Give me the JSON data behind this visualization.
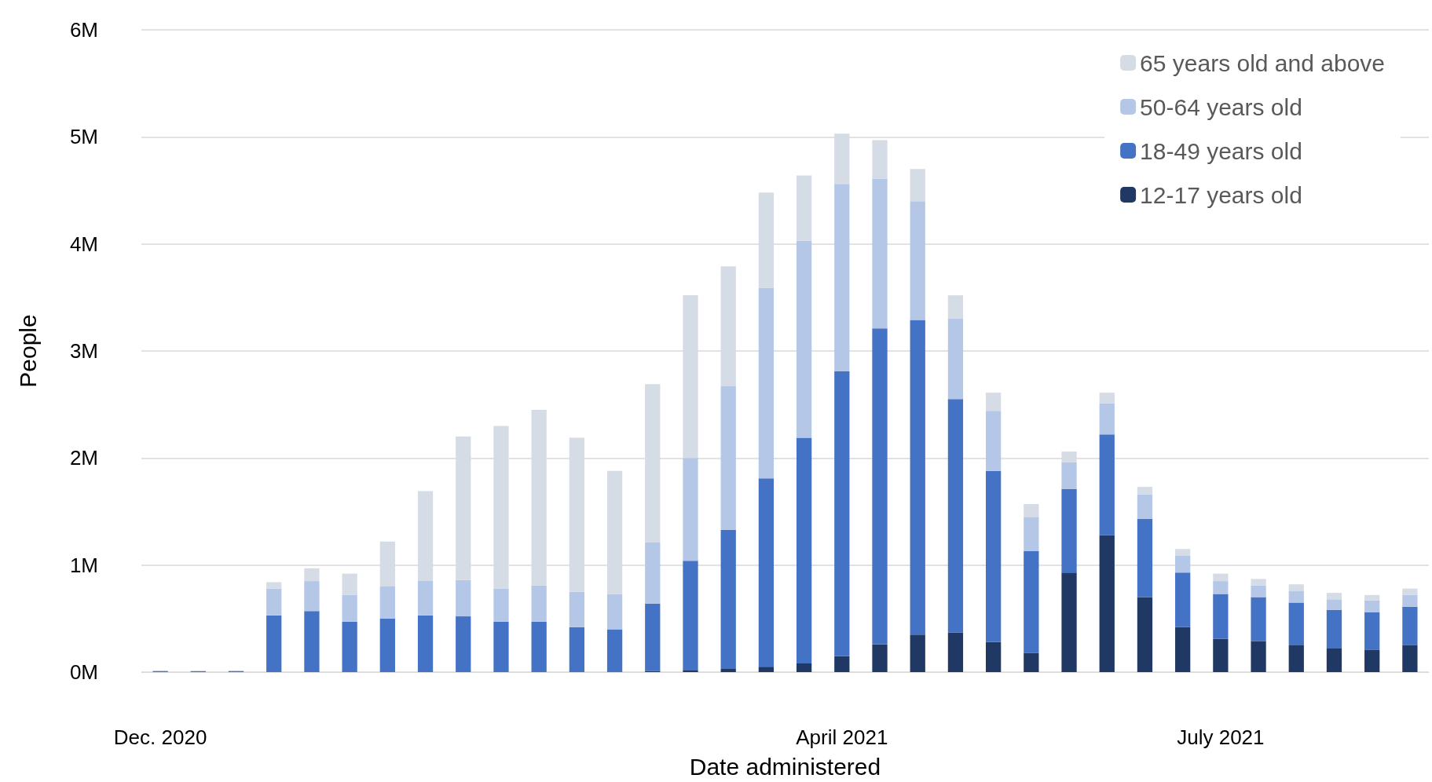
{
  "chart_data": {
    "type": "bar",
    "stacked": true,
    "xlabel": "Date administered",
    "ylabel": "People",
    "categories": [
      "Dec. 2020",
      null,
      null,
      null,
      null,
      null,
      null,
      null,
      null,
      null,
      null,
      null,
      null,
      null,
      null,
      null,
      null,
      null,
      "April 2021",
      null,
      null,
      null,
      null,
      null,
      null,
      null,
      null,
      null,
      "July 2021",
      null,
      null,
      null,
      null,
      null
    ],
    "ylim": [
      0,
      6000000
    ],
    "yticks": [
      {
        "value": 0,
        "label": "0M"
      },
      {
        "value": 1000000,
        "label": "1M"
      },
      {
        "value": 2000000,
        "label": "2M"
      },
      {
        "value": 3000000,
        "label": "3M"
      },
      {
        "value": 4000000,
        "label": "4M"
      },
      {
        "value": 5000000,
        "label": "5M"
      },
      {
        "value": 6000000,
        "label": "6M"
      }
    ],
    "grid": "y",
    "legend": "top right",
    "series": [
      {
        "name": "12-17 years old",
        "color": "#203864",
        "values": [
          0,
          0,
          0,
          0,
          0,
          0,
          0,
          0,
          0,
          0,
          0,
          0,
          0,
          10000,
          20000,
          30000,
          50000,
          80000,
          150000,
          260000,
          350000,
          370000,
          280000,
          180000,
          930000,
          1280000,
          700000,
          420000,
          310000,
          290000,
          250000,
          220000,
          210000,
          250000
        ]
      },
      {
        "name": "18-49 years old",
        "color": "#4472c4",
        "values": [
          10000,
          10000,
          10000,
          530000,
          570000,
          470000,
          500000,
          530000,
          520000,
          470000,
          470000,
          420000,
          400000,
          630000,
          1020000,
          1300000,
          1760000,
          2110000,
          2660000,
          2950000,
          2940000,
          2180000,
          1600000,
          950000,
          780000,
          940000,
          730000,
          510000,
          420000,
          410000,
          400000,
          360000,
          350000,
          360000
        ]
      },
      {
        "name": "50-64 years old",
        "color": "#b4c7e7",
        "values": [
          0,
          0,
          0,
          250000,
          280000,
          250000,
          300000,
          320000,
          340000,
          310000,
          340000,
          330000,
          330000,
          570000,
          960000,
          1340000,
          1780000,
          1840000,
          1750000,
          1400000,
          1110000,
          750000,
          560000,
          320000,
          250000,
          290000,
          230000,
          160000,
          120000,
          110000,
          110000,
          100000,
          110000,
          110000
        ]
      },
      {
        "name": "65 years old and above",
        "color": "#d6dce5",
        "values": [
          0,
          0,
          0,
          60000,
          120000,
          200000,
          420000,
          840000,
          1340000,
          1520000,
          1640000,
          1440000,
          1150000,
          1480000,
          1520000,
          1120000,
          890000,
          610000,
          470000,
          360000,
          300000,
          220000,
          170000,
          120000,
          100000,
          100000,
          70000,
          60000,
          70000,
          60000,
          60000,
          60000,
          50000,
          60000
        ]
      }
    ]
  }
}
